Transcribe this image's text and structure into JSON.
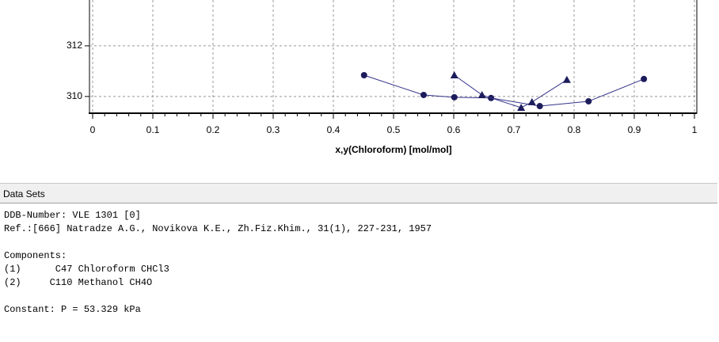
{
  "chart_data": {
    "type": "line",
    "x_label": "x,y(Chloroform) [mol/mol]",
    "xlim": [
      0,
      1
    ],
    "xticks": [
      0,
      0.1,
      0.2,
      0.3,
      0.4,
      0.5,
      0.6,
      0.7,
      0.8,
      0.9,
      1
    ],
    "ylim": [
      309.34,
      313.81
    ],
    "yticks": [
      310,
      312
    ],
    "grid": true,
    "series": [
      {
        "color": "#33338a",
        "marker": "circle",
        "x": [
          0.451,
          0.55,
          0.601,
          0.662,
          0.743,
          0.824,
          0.916
        ],
        "values": [
          310.84,
          310.06,
          309.97,
          309.94,
          309.62,
          309.81,
          310.69
        ]
      },
      {
        "color": "#33338a",
        "marker": "triangle",
        "x": [
          0.601,
          0.647,
          0.712,
          0.73,
          0.788
        ],
        "values": [
          310.84,
          310.06,
          309.56,
          309.78,
          310.66
        ]
      }
    ]
  },
  "data_sets": {
    "header": "Data Sets",
    "ddb_number": "DDB-Number: VLE 1301 [0]",
    "reference": "Ref.:[666] Natradze A.G., Novikova K.E., Zh.Fiz.Khim., 31(1), 227-231, 1957",
    "components_label": "Components:",
    "components": [
      "(1)      C47 Chloroform CHCl3",
      "(2)     C110 Methanol CH4O"
    ],
    "constant": "Constant: P = 53.329 kPa"
  }
}
